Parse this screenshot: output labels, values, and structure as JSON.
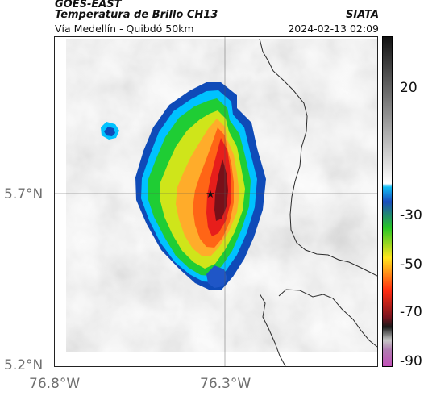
{
  "header": {
    "source": "GOES-EAST",
    "product": "Temperatura de Brillo CH13",
    "route": "Vía Medellín - Quibdó 50km",
    "organization": "SIATA",
    "timestamp": "2024-02-13 02:09"
  },
  "map": {
    "latitude_ticks": [
      "5.7°N",
      "5.2°N"
    ],
    "longitude_ticks": [
      "76.8°W",
      "76.3°W"
    ],
    "marker_icon": "star-icon",
    "features": [
      "cloud-top temperature field",
      "boundary lines",
      "reference gridlines"
    ]
  },
  "colorbar": {
    "labels": [
      "20",
      "-30",
      "-50",
      "-70",
      "-90"
    ],
    "colors": {
      "low": "#c24fb8",
      "cold": "#7a1520",
      "red": "#ff2c12",
      "orange": "#ff8b15",
      "yellow": "#ffe61e",
      "green": "#27c624",
      "cyan": "#00c7ff",
      "blue": "#1a4dbd",
      "gray": "#8f8f8f",
      "white": "#ffffff",
      "black": "#111111"
    }
  }
}
